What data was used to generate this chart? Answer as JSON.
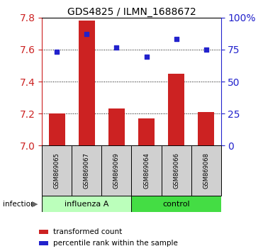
{
  "title": "GDS4825 / ILMN_1688672",
  "categories": [
    "GSM869065",
    "GSM869067",
    "GSM869069",
    "GSM869064",
    "GSM869066",
    "GSM869068"
  ],
  "bar_values": [
    7.2,
    7.78,
    7.23,
    7.17,
    7.45,
    7.21
  ],
  "dot_values": [
    7.585,
    7.695,
    7.615,
    7.555,
    7.665,
    7.6
  ],
  "bar_color": "#cc2222",
  "dot_color": "#2222cc",
  "bar_bottom": 7.0,
  "ylim_left": [
    7.0,
    7.8
  ],
  "ylim_right": [
    0,
    100
  ],
  "yticks_left": [
    7.0,
    7.2,
    7.4,
    7.6,
    7.8
  ],
  "yticks_right": [
    0,
    25,
    50,
    75,
    100
  ],
  "ytick_labels_right": [
    "0",
    "25",
    "50",
    "75",
    "100%"
  ],
  "group1_label": "influenza A",
  "group2_label": "control",
  "group1_color": "#bbffbb",
  "group2_color": "#44dd44",
  "infection_label": "infection",
  "legend_bar_label": "transformed count",
  "legend_dot_label": "percentile rank within the sample",
  "label_area_color": "#d0d0d0",
  "left_tick_color": "#cc2222",
  "right_tick_color": "#2222cc",
  "grid_dotted_levels": [
    7.2,
    7.4,
    7.6
  ]
}
